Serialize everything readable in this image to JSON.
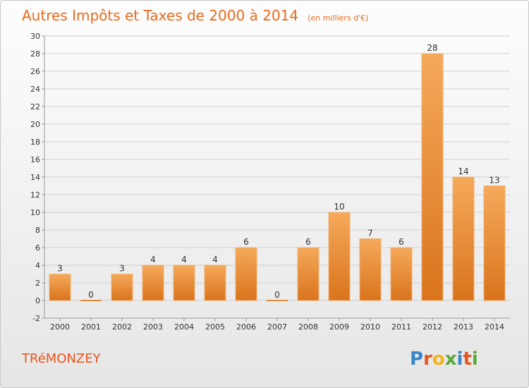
{
  "title": "Autres Impôts et Taxes de 2000 à 2014",
  "subtitle": "(en milliers d'€)",
  "commune": "TRéMONZEY",
  "logo": "Proxiti",
  "colors": {
    "title": "#ea6a1c",
    "bar_light": "#f5a95a",
    "bar_dark": "#d9741c",
    "background_top": "#fdfdfd",
    "background_bottom": "#e6e6e6"
  },
  "chart_data": {
    "type": "bar",
    "categories": [
      "2000",
      "2001",
      "2002",
      "2003",
      "2004",
      "2005",
      "2006",
      "2007",
      "2008",
      "2009",
      "2010",
      "2011",
      "2012",
      "2013",
      "2014"
    ],
    "values": [
      3,
      0,
      3,
      4,
      4,
      4,
      6,
      0,
      6,
      10,
      7,
      6,
      28,
      14,
      13
    ],
    "data_labels": [
      "3",
      "0",
      "3",
      "4",
      "4",
      "4",
      "6",
      "0",
      "6",
      "10",
      "7",
      "6",
      "28",
      "14",
      "13"
    ],
    "ylim": [
      -2,
      30
    ],
    "yticks": [
      -2,
      0,
      2,
      4,
      6,
      8,
      10,
      12,
      14,
      16,
      18,
      20,
      22,
      24,
      26,
      28,
      30
    ],
    "grid": "horizontal",
    "legend": "none"
  }
}
